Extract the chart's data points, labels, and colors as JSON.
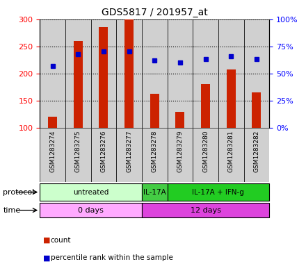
{
  "title": "GDS5817 / 201957_at",
  "samples": [
    "GSM1283274",
    "GSM1283275",
    "GSM1283276",
    "GSM1283277",
    "GSM1283278",
    "GSM1283279",
    "GSM1283280",
    "GSM1283281",
    "GSM1283282"
  ],
  "counts": [
    120,
    260,
    285,
    300,
    163,
    130,
    180,
    207,
    165
  ],
  "percentiles": [
    57,
    68,
    70,
    70,
    62,
    60,
    63,
    66,
    63
  ],
  "ylim_left": [
    100,
    300
  ],
  "ylim_right": [
    0,
    100
  ],
  "yticks_left": [
    100,
    150,
    200,
    250,
    300
  ],
  "yticks_right": [
    0,
    25,
    50,
    75,
    100
  ],
  "ytick_labels_right": [
    "0%",
    "25%",
    "50%",
    "75%",
    "100%"
  ],
  "bar_color": "#cc2200",
  "square_color": "#0000cc",
  "protocol_groups": [
    {
      "label": "untreated",
      "start": 0,
      "end": 3,
      "color": "#ccffcc"
    },
    {
      "label": "IL-17A",
      "start": 4,
      "end": 4,
      "color": "#44cc44"
    },
    {
      "label": "IL-17A + IFN-g",
      "start": 5,
      "end": 8,
      "color": "#22cc22"
    }
  ],
  "time_groups": [
    {
      "label": "0 days",
      "start": 0,
      "end": 3,
      "color": "#ffaaff"
    },
    {
      "label": "12 days",
      "start": 4,
      "end": 8,
      "color": "#dd44dd"
    }
  ],
  "sample_bg_color": "#d0d0d0",
  "grid_color": "#000000",
  "fig_width": 4.4,
  "fig_height": 3.93
}
